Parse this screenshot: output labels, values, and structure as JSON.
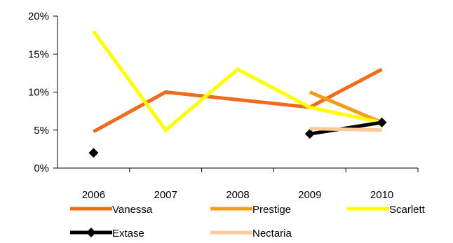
{
  "chart_data": {
    "type": "line",
    "title": "",
    "xlabel": "",
    "ylabel": "",
    "categories": [
      "2006",
      "2007",
      "2008",
      "2009",
      "2010"
    ],
    "ylim": [
      0,
      20
    ],
    "y_ticks": [
      "0%",
      "5%",
      "10%",
      "15%",
      "20%"
    ],
    "y_unit": "%",
    "grid": false,
    "legend_position": "bottom",
    "series": [
      {
        "name": "Vanessa",
        "color": "#f26b1d",
        "marker": "none",
        "values": [
          4.8,
          10,
          9,
          8,
          13
        ]
      },
      {
        "name": "Prestige",
        "color": "#f39b1a",
        "marker": "none",
        "values": [
          null,
          null,
          null,
          10,
          6
        ]
      },
      {
        "name": "Scarlett",
        "color": "#ffff00",
        "marker": "none",
        "values": [
          18,
          5,
          13,
          8,
          6
        ]
      },
      {
        "name": "Extase",
        "color": "#000000",
        "marker": "diamond",
        "values": [
          2,
          null,
          null,
          4.5,
          6
        ]
      },
      {
        "name": "Nectaria",
        "color": "#fbc99a",
        "marker": "none",
        "values": [
          null,
          null,
          null,
          5.2,
          5
        ]
      }
    ]
  }
}
